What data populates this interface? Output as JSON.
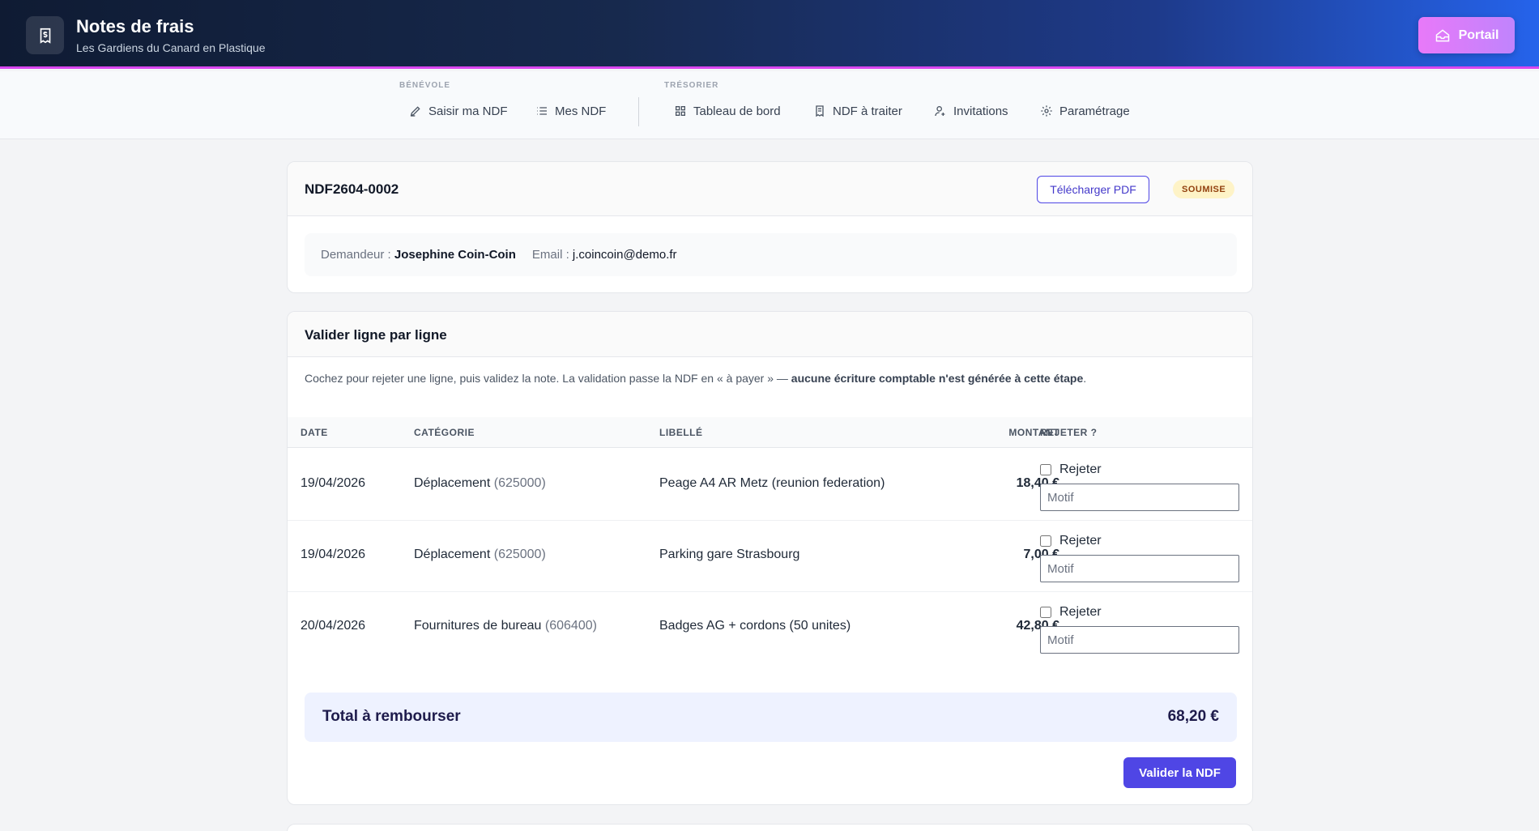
{
  "header": {
    "title": "Notes de frais",
    "subtitle": "Les Gardiens du Canard en Plastique",
    "portal_label": "Portail"
  },
  "nav": {
    "benevole_label": "BÉNÉVOLE",
    "tresorier_label": "TRÉSORIER",
    "items": [
      {
        "label": "Saisir ma NDF",
        "icon": "pen-icon"
      },
      {
        "label": "Mes NDF",
        "icon": "list-icon"
      },
      {
        "label": "Tableau de bord",
        "icon": "grid-icon"
      },
      {
        "label": "NDF à traiter",
        "icon": "receipt-icon"
      },
      {
        "label": "Invitations",
        "icon": "user-plus-icon"
      },
      {
        "label": "Paramétrage",
        "icon": "gear-icon"
      }
    ]
  },
  "ndf": {
    "id": "NDF2604-0002",
    "download_label": "Télécharger PDF",
    "status": "SOUMISE",
    "requester_label": "Demandeur :",
    "requester_name": "Josephine Coin-Coin",
    "email_label": "Email :",
    "email": "j.coincoin@demo.fr"
  },
  "validation": {
    "title": "Valider ligne par ligne",
    "intro_text": "Cochez pour rejeter une ligne, puis validez la note. La validation passe la NDF en « à payer » — ",
    "intro_bold": "aucune écriture comptable n'est générée à cette étape",
    "intro_end": ".",
    "columns": {
      "date": "DATE",
      "category": "CATÉGORIE",
      "label": "LIBELLÉ",
      "amount": "MONTANT",
      "reject": "REJETER ?"
    },
    "reject_label": "Rejeter",
    "motif_placeholder": "Motif",
    "rows": [
      {
        "date": "19/04/2026",
        "category": "Déplacement",
        "code": "(625000)",
        "label": "Peage A4 AR Metz (reunion federation)",
        "amount": "18,40 €"
      },
      {
        "date": "19/04/2026",
        "category": "Déplacement",
        "code": "(625000)",
        "label": "Parking gare Strasbourg",
        "amount": "7,00 €"
      },
      {
        "date": "20/04/2026",
        "category": "Fournitures de bureau",
        "code": "(606400)",
        "label": "Badges AG + cordons (50 unites)",
        "amount": "42,80 €"
      }
    ],
    "total_label": "Total à rembourser",
    "total_value": "68,20 €",
    "validate_label": "Valider la NDF"
  }
}
